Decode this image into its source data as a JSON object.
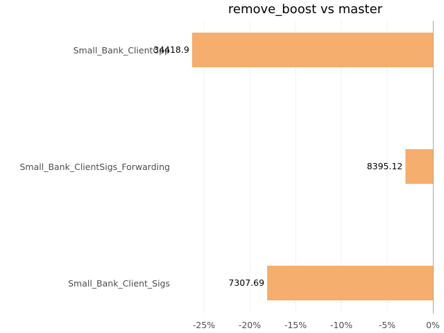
{
  "chart_data": {
    "type": "bar",
    "orientation": "horizontal",
    "title": "remove_boost vs master",
    "xlabel": "",
    "ylabel": "",
    "categories": [
      "Small_Bank_ClientCpp",
      "Small_Bank_ClientSigs_Forwarding",
      "Small_Bank_Client_Sigs"
    ],
    "values": [
      -26.3,
      -3.0,
      -18.1
    ],
    "value_labels": [
      "34418.9",
      "8395.12",
      "7307.69"
    ],
    "bar_color": "#f5ae6e",
    "xlim": [
      -27.5,
      0
    ],
    "xticks": [
      -25,
      -20,
      -15,
      -10,
      -5,
      0
    ],
    "xtick_labels": [
      "-25%",
      "-20%",
      "-15%",
      "-10%",
      "-5%",
      "0%"
    ],
    "grid": "vertical"
  }
}
